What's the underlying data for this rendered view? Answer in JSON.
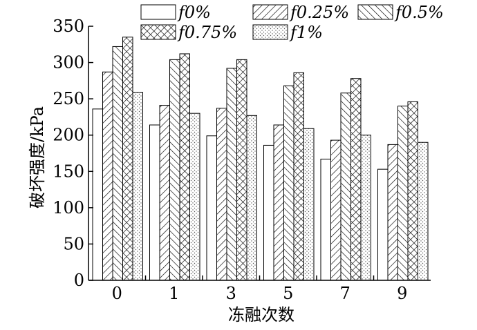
{
  "chart_data": {
    "type": "bar",
    "xlabel": "冻融次数",
    "ylabel": "破坏强度/kPa",
    "categories": [
      "0",
      "1",
      "3",
      "5",
      "7",
      "9"
    ],
    "ylim": [
      0,
      350
    ],
    "yticks": [
      "0",
      "50",
      "100",
      "150",
      "200",
      "250",
      "300",
      "350"
    ],
    "grid": false,
    "legend_position": "top",
    "series": [
      {
        "name": "f0%",
        "pattern": "none",
        "values": [
          236,
          214,
          199,
          186,
          167,
          153
        ]
      },
      {
        "name": "f0.25%",
        "pattern": "forward-hatch",
        "values": [
          287,
          241,
          237,
          214,
          193,
          187
        ]
      },
      {
        "name": "f0.5%",
        "pattern": "back-hatch",
        "values": [
          322,
          304,
          292,
          268,
          258,
          240
        ]
      },
      {
        "name": "f0.75%",
        "pattern": "cross-hatch",
        "values": [
          335,
          312,
          304,
          286,
          278,
          246
        ]
      },
      {
        "name": "f1%",
        "pattern": "dots",
        "values": [
          259,
          230,
          227,
          209,
          200,
          190
        ]
      }
    ]
  }
}
